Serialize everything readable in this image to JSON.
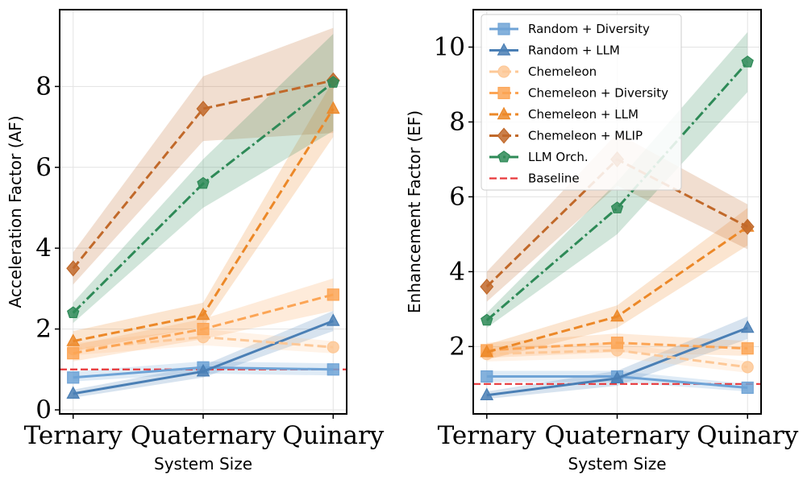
{
  "figure": {
    "xlabel": "System Size"
  },
  "chart_data": [
    {
      "type": "line",
      "title": "",
      "xlabel": "System Size",
      "ylabel": "Acceleration Factor (AF)",
      "categories": [
        "Ternary",
        "Quaternary",
        "Quinary"
      ],
      "ylim": [
        -0.1,
        9.9
      ],
      "yticks": [
        0,
        2,
        4,
        6,
        8
      ],
      "grid": true,
      "baseline": {
        "name": "Baseline",
        "value": 1.0,
        "color": "#e8383b"
      },
      "series": [
        {
          "name": "Random + Diversity",
          "color": "#6fa3d6",
          "marker": "square",
          "dash": "solid",
          "values": [
            0.8,
            1.05,
            1.0
          ],
          "band": [
            [
              0.7,
              0.95
            ],
            [
              0.9,
              1.2
            ],
            [
              0.85,
              1.15
            ]
          ]
        },
        {
          "name": "Random + LLM",
          "color": "#4a7fb5",
          "marker": "triangle",
          "dash": "solid",
          "values": [
            0.4,
            0.95,
            2.2
          ],
          "band": [
            [
              0.3,
              0.5
            ],
            [
              0.8,
              1.1
            ],
            [
              1.95,
              2.45
            ]
          ]
        },
        {
          "name": "Chemeleon",
          "color": "#fdc897",
          "marker": "circle",
          "dash": "dashed",
          "values": [
            1.5,
            1.8,
            1.55
          ],
          "band": [
            [
              1.35,
              1.65
            ],
            [
              1.6,
              2.0
            ],
            [
              1.4,
              1.7
            ]
          ]
        },
        {
          "name": "Chemeleon + Diversity",
          "color": "#fca555",
          "marker": "square",
          "dash": "dashed",
          "values": [
            1.4,
            2.0,
            2.85
          ],
          "band": [
            [
              1.2,
              1.6
            ],
            [
              1.75,
              2.25
            ],
            [
              2.45,
              3.25
            ]
          ]
        },
        {
          "name": "Chemeleon + LLM",
          "color": "#ec8828",
          "marker": "triangle",
          "dash": "dashed",
          "values": [
            1.7,
            2.35,
            7.45
          ],
          "band": [
            [
              1.45,
              1.95
            ],
            [
              2.05,
              2.65
            ],
            [
              6.75,
              8.15
            ]
          ]
        },
        {
          "name": "Chemeleon + MLIP",
          "color": "#c1692a",
          "marker": "diamond",
          "dash": "dashed",
          "values": [
            3.5,
            7.45,
            8.15
          ],
          "band": [
            [
              3.1,
              3.9
            ],
            [
              6.65,
              8.25
            ],
            [
              6.85,
              9.45
            ]
          ]
        },
        {
          "name": "LLM Orch.",
          "color": "#2e8a57",
          "marker": "pentagon",
          "dash": "dashdot",
          "values": [
            2.4,
            5.6,
            8.1
          ],
          "band": [
            [
              2.15,
              2.65
            ],
            [
              5.0,
              6.2
            ],
            [
              6.9,
              9.3
            ]
          ]
        }
      ]
    },
    {
      "type": "line",
      "title": "",
      "xlabel": "System Size",
      "ylabel": "Enhancement Factor (EF)",
      "categories": [
        "Ternary",
        "Quaternary",
        "Quinary"
      ],
      "ylim": [
        0.2,
        11.0
      ],
      "yticks": [
        2,
        4,
        6,
        8,
        10
      ],
      "grid": true,
      "legend": "top-left",
      "baseline": {
        "name": "Baseline",
        "value": 1.0,
        "color": "#e8383b"
      },
      "series": [
        {
          "name": "Random + Diversity",
          "color": "#6fa3d6",
          "marker": "square",
          "dash": "solid",
          "values": [
            1.2,
            1.2,
            0.9
          ],
          "band": [
            [
              1.05,
              1.35
            ],
            [
              1.05,
              1.35
            ],
            [
              0.8,
              1.0
            ]
          ]
        },
        {
          "name": "Random + LLM",
          "color": "#4a7fb5",
          "marker": "triangle",
          "dash": "solid",
          "values": [
            0.7,
            1.15,
            2.5
          ],
          "band": [
            [
              0.6,
              0.8
            ],
            [
              0.95,
              1.35
            ],
            [
              2.2,
              2.8
            ]
          ]
        },
        {
          "name": "Chemeleon",
          "color": "#fdc897",
          "marker": "circle",
          "dash": "dashed",
          "values": [
            1.8,
            1.9,
            1.45
          ],
          "band": [
            [
              1.6,
              2.0
            ],
            [
              1.7,
              2.1
            ],
            [
              1.3,
              1.6
            ]
          ]
        },
        {
          "name": "Chemeleon + Diversity",
          "color": "#fca555",
          "marker": "square",
          "dash": "dashed",
          "values": [
            1.9,
            2.1,
            1.95
          ],
          "band": [
            [
              1.7,
              2.1
            ],
            [
              1.85,
              2.35
            ],
            [
              1.75,
              2.15
            ]
          ]
        },
        {
          "name": "Chemeleon + LLM",
          "color": "#ec8828",
          "marker": "triangle",
          "dash": "dashed",
          "values": [
            1.85,
            2.8,
            5.2
          ],
          "band": [
            [
              1.65,
              2.05
            ],
            [
              2.5,
              3.1
            ],
            [
              4.7,
              5.7
            ]
          ]
        },
        {
          "name": "Chemeleon + MLIP",
          "color": "#c1692a",
          "marker": "diamond",
          "dash": "dashed",
          "values": [
            3.6,
            7.0,
            5.2
          ],
          "band": [
            [
              3.2,
              4.0
            ],
            [
              6.3,
              7.7
            ],
            [
              4.6,
              5.8
            ]
          ]
        },
        {
          "name": "LLM Orch.",
          "color": "#2e8a57",
          "marker": "pentagon",
          "dash": "dashdot",
          "values": [
            2.7,
            5.7,
            9.6
          ],
          "band": [
            [
              2.5,
              2.9
            ],
            [
              5.0,
              6.4
            ],
            [
              8.8,
              10.4
            ]
          ]
        }
      ]
    }
  ]
}
